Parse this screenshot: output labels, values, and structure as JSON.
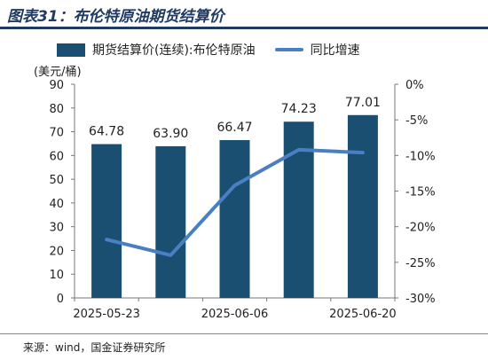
{
  "header": {
    "title": "图表31：布伦特原油期货结算价"
  },
  "colors": {
    "bar": "#1b4f72",
    "line": "#4a7fc3",
    "title": "#1f3a63"
  },
  "chart_data": {
    "type": "bar",
    "categories": [
      "2025-05-23",
      "",
      "2025-06-06",
      "",
      "2025-06-20"
    ],
    "series": [
      {
        "name": "期货结算价(连续):布伦特原油",
        "type": "bar",
        "axis": "left",
        "values": [
          64.78,
          63.9,
          66.47,
          74.23,
          77.01
        ]
      },
      {
        "name": "同比增速",
        "type": "line",
        "axis": "right",
        "values": [
          -21.8,
          -24.0,
          -14.2,
          -9.2,
          -9.6
        ]
      }
    ],
    "data_labels": [
      "64.78",
      "63.90",
      "66.47",
      "74.23",
      "77.01"
    ],
    "x_tick_labels": [
      "2025-05-23",
      "2025-06-06",
      "2025-06-20"
    ],
    "ylabel": "(美元/桶)",
    "ylim": [
      0,
      90
    ],
    "y_ticks": [
      "0",
      "10",
      "20",
      "30",
      "40",
      "50",
      "60",
      "70",
      "80",
      "90"
    ],
    "y2lim": [
      -30,
      0
    ],
    "y2_ticks": [
      "0%",
      "-5%",
      "-10%",
      "-15%",
      "-20%",
      "-25%",
      "-30%"
    ],
    "legend_position": "top",
    "grid": false
  },
  "footer": {
    "source": "来源：wind，国金证券研究所"
  }
}
